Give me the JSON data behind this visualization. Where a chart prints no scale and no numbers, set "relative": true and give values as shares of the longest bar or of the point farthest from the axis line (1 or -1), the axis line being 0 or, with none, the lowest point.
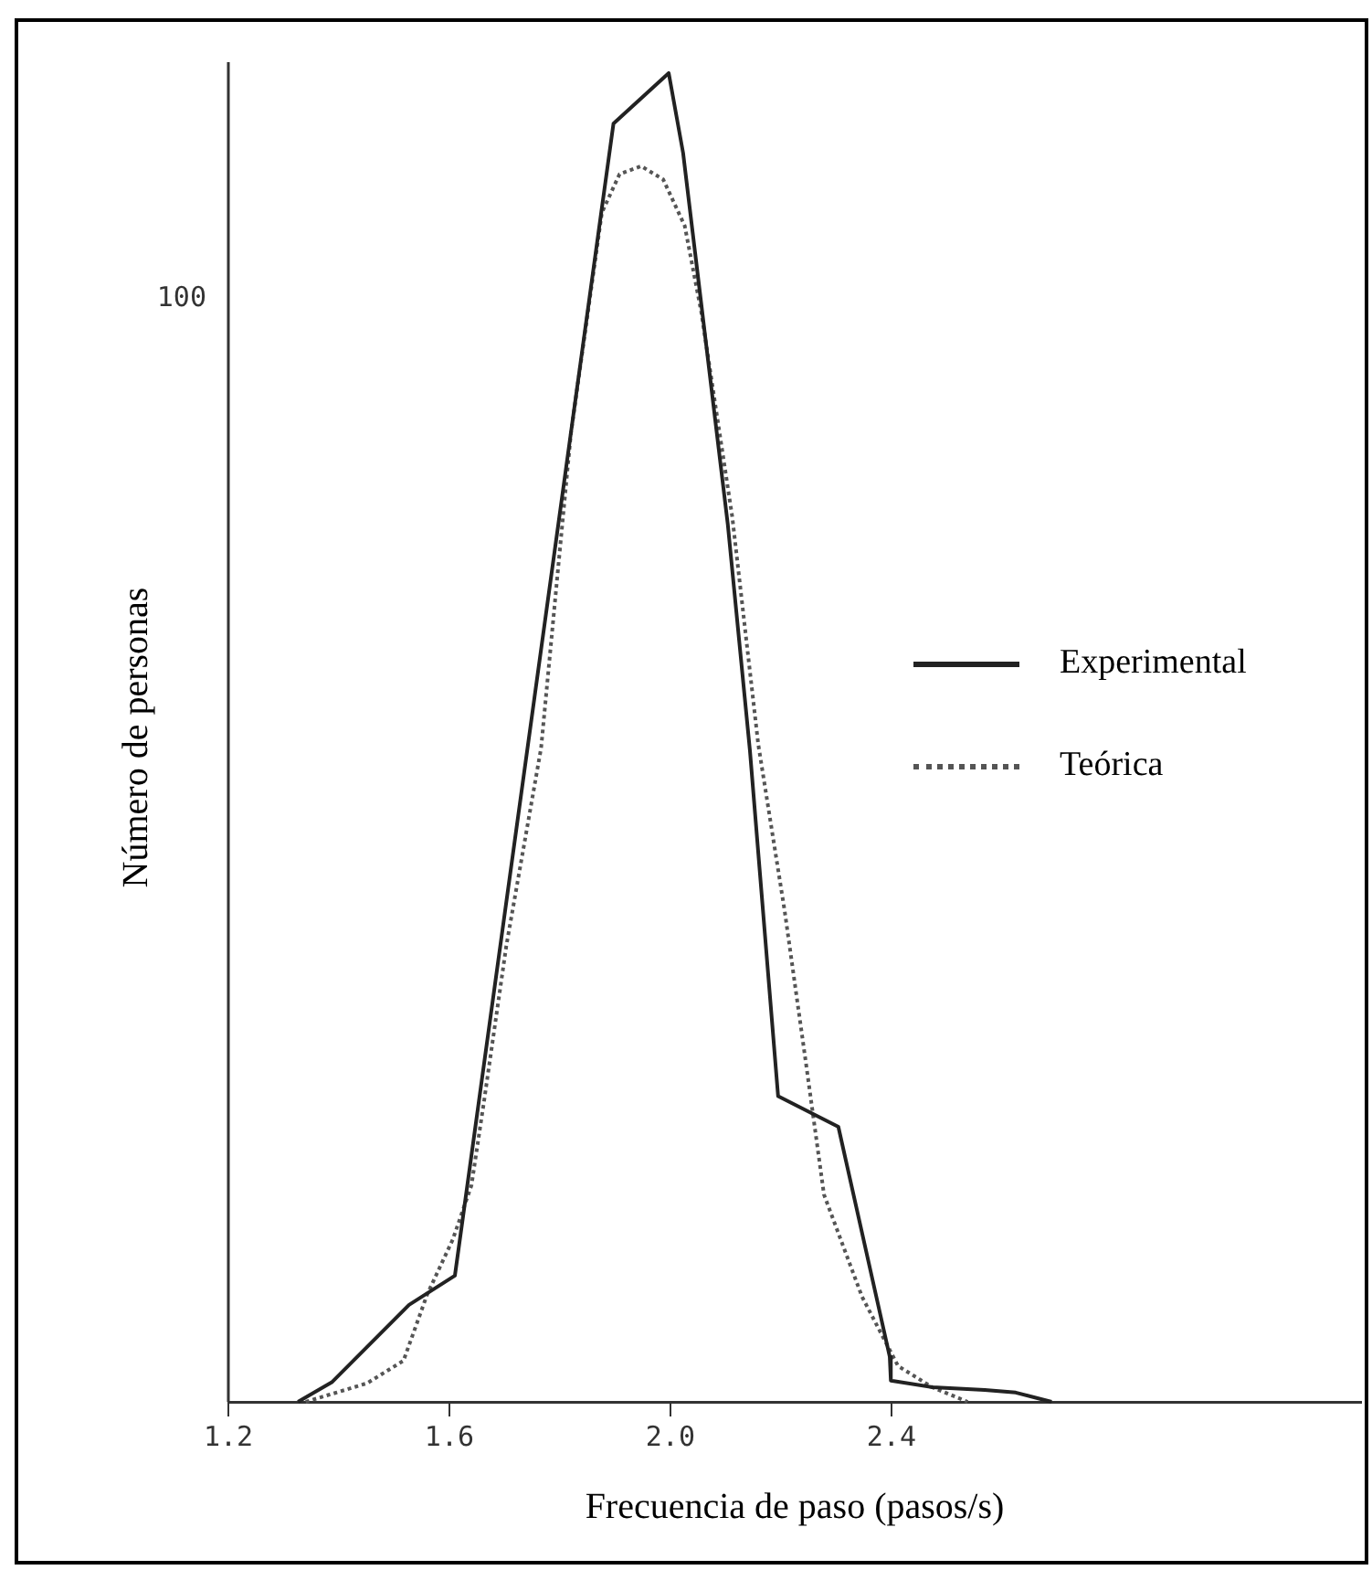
{
  "chart_data": {
    "type": "line",
    "relative": true,
    "xlabel": "Frecuencia de paso (pasos/s)",
    "ylabel": "Número de personas",
    "xlim": [
      1.2,
      3.25
    ],
    "xticks": [
      1.2,
      1.6,
      {
        "value": 2,
        "label": "2.0"
      },
      2.4
    ],
    "annotations": [
      "100"
    ],
    "grid": false,
    "legend": "right",
    "marker": "none",
    "series": [
      {
        "name": "Experimental",
        "color": "#222222",
        "line_style": "solid",
        "x": [
          1.326,
          1.388,
          1.527,
          1.61,
          1.897,
          1.997,
          2.023,
          2.104,
          2.144,
          2.195,
          2.304,
          2.397,
          2.399,
          2.474,
          2.569,
          2.625,
          2.69
        ],
        "values": [
          0,
          0.015,
          0.073,
          0.095,
          0.962,
          1,
          0.94,
          0.66,
          0.49,
          0.23,
          0.207,
          0.034,
          0.016,
          0.011,
          0.009,
          0.007,
          0
        ]
      },
      {
        "name": "Teórica",
        "color": "#555555",
        "line_style": "dotted",
        "x": [
          1.34,
          1.451,
          1.517,
          1.56,
          1.606,
          1.64,
          1.663,
          1.703,
          1.766,
          1.82,
          1.876,
          1.908,
          1.947,
          1.987,
          2.026,
          2.056,
          2.112,
          2.159,
          2.207,
          2.246,
          2.278,
          2.347,
          2.412,
          2.474,
          2.538
        ],
        "values": [
          0,
          0.014,
          0.031,
          0.081,
          0.122,
          0.163,
          0.227,
          0.343,
          0.492,
          0.729,
          0.895,
          0.924,
          0.93,
          0.92,
          0.885,
          0.82,
          0.666,
          0.495,
          0.369,
          0.253,
          0.156,
          0.079,
          0.027,
          0.011,
          0
        ]
      }
    ]
  }
}
